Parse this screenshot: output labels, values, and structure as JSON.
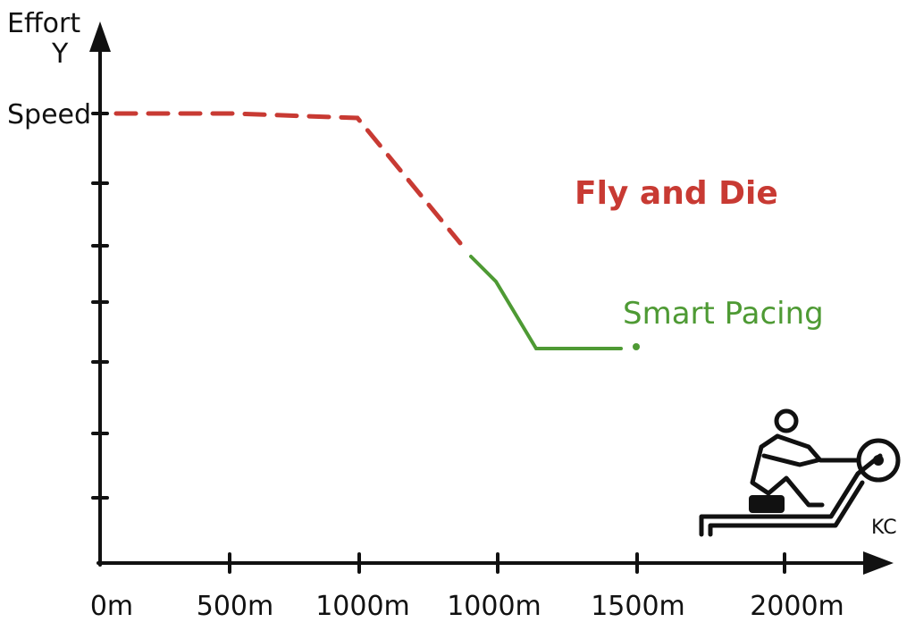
{
  "axes": {
    "y_title": "Effort",
    "y_symbol": "Y",
    "y_label": "Speed",
    "x_labels": [
      "0m",
      "500m",
      "1000m",
      "1000m",
      "1500m",
      "2000m"
    ]
  },
  "annotations": {
    "fly_and_die": "Fly and Die",
    "smart_pacing": "Smart Pacing",
    "kc": "KC"
  }
}
